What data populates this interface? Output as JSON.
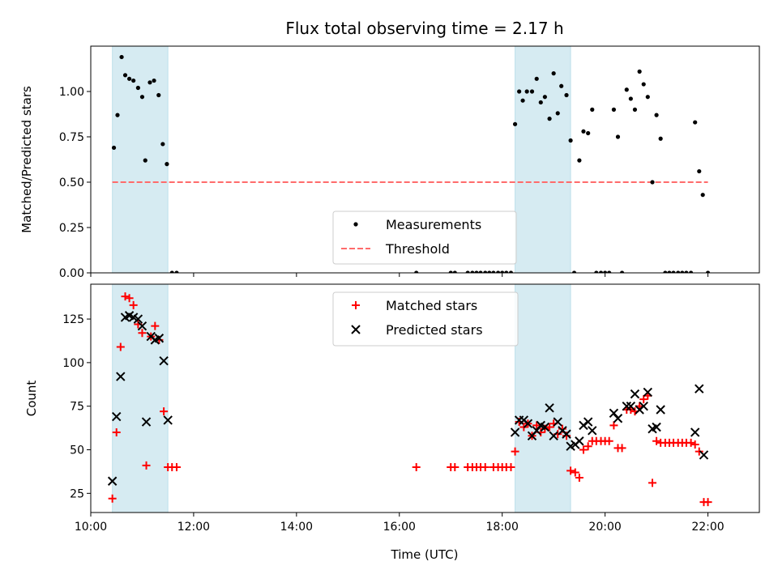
{
  "title": "Flux total observing time = 2.17 h",
  "colors": {
    "shade": "#add8e6",
    "measurement": "#000000",
    "threshold": "#ff6b6b",
    "matched": "#ff0000",
    "predicted": "#000000"
  },
  "chart_data": [
    {
      "type": "scatter",
      "ylabel": "Matched/Predicted stars",
      "xlim": [
        10.0,
        23.0
      ],
      "ylim": [
        0.0,
        1.25
      ],
      "yticks": [
        0.0,
        0.25,
        0.5,
        0.75,
        1.0
      ],
      "ytick_labels": [
        "0.00",
        "0.25",
        "0.50",
        "0.75",
        "1.00"
      ],
      "grid": false,
      "legend": "lower-center",
      "shaded_intervals": [
        [
          10.42,
          11.5
        ],
        [
          18.25,
          19.33
        ]
      ],
      "threshold": {
        "name": "Threshold",
        "y": 0.5,
        "x_range": [
          10.42,
          22.0
        ]
      },
      "series": [
        {
          "name": "Measurements",
          "marker": "dot",
          "points": [
            [
              10.45,
              0.69
            ],
            [
              10.52,
              0.87
            ],
            [
              10.6,
              1.19
            ],
            [
              10.67,
              1.09
            ],
            [
              10.75,
              1.07
            ],
            [
              10.83,
              1.06
            ],
            [
              10.92,
              1.02
            ],
            [
              11.0,
              0.97
            ],
            [
              11.06,
              0.62
            ],
            [
              11.15,
              1.05
            ],
            [
              11.23,
              1.06
            ],
            [
              11.32,
              0.98
            ],
            [
              11.4,
              0.71
            ],
            [
              11.48,
              0.6
            ],
            [
              11.58,
              0.0
            ],
            [
              11.67,
              0.0
            ],
            [
              16.33,
              0.0
            ],
            [
              17.0,
              0.0
            ],
            [
              17.08,
              0.0
            ],
            [
              17.33,
              0.0
            ],
            [
              17.42,
              0.0
            ],
            [
              17.5,
              0.0
            ],
            [
              17.58,
              0.0
            ],
            [
              17.67,
              0.0
            ],
            [
              17.75,
              0.0
            ],
            [
              17.83,
              0.0
            ],
            [
              17.92,
              0.0
            ],
            [
              18.0,
              0.0
            ],
            [
              18.08,
              0.0
            ],
            [
              18.17,
              0.0
            ],
            [
              18.25,
              0.82
            ],
            [
              18.33,
              1.0
            ],
            [
              18.4,
              0.95
            ],
            [
              18.48,
              1.0
            ],
            [
              18.58,
              1.0
            ],
            [
              18.67,
              1.07
            ],
            [
              18.75,
              0.94
            ],
            [
              18.83,
              0.97
            ],
            [
              18.92,
              0.85
            ],
            [
              19.0,
              1.1
            ],
            [
              19.08,
              0.88
            ],
            [
              19.15,
              1.03
            ],
            [
              19.25,
              0.98
            ],
            [
              19.33,
              0.73
            ],
            [
              19.4,
              0.0
            ],
            [
              19.5,
              0.62
            ],
            [
              19.58,
              0.78
            ],
            [
              19.67,
              0.77
            ],
            [
              19.75,
              0.9
            ],
            [
              19.83,
              0.0
            ],
            [
              19.92,
              0.0
            ],
            [
              20.0,
              0.0
            ],
            [
              20.08,
              0.0
            ],
            [
              20.17,
              0.9
            ],
            [
              20.25,
              0.75
            ],
            [
              20.33,
              0.0
            ],
            [
              20.42,
              1.01
            ],
            [
              20.5,
              0.96
            ],
            [
              20.58,
              0.9
            ],
            [
              20.67,
              1.11
            ],
            [
              20.75,
              1.04
            ],
            [
              20.83,
              0.97
            ],
            [
              20.92,
              0.5
            ],
            [
              21.0,
              0.87
            ],
            [
              21.08,
              0.74
            ],
            [
              21.17,
              0.0
            ],
            [
              21.25,
              0.0
            ],
            [
              21.33,
              0.0
            ],
            [
              21.42,
              0.0
            ],
            [
              21.5,
              0.0
            ],
            [
              21.58,
              0.0
            ],
            [
              21.67,
              0.0
            ],
            [
              21.75,
              0.83
            ],
            [
              21.83,
              0.56
            ],
            [
              21.9,
              0.43
            ],
            [
              22.0,
              0.0
            ]
          ]
        }
      ]
    },
    {
      "type": "scatter",
      "xlabel": "Time (UTC)",
      "ylabel": "Count",
      "xlim": [
        10.0,
        23.0
      ],
      "ylim": [
        14.0,
        145.0
      ],
      "xticks": [
        10,
        12,
        14,
        16,
        18,
        20,
        22
      ],
      "xtick_labels": [
        "10:00",
        "12:00",
        "14:00",
        "16:00",
        "18:00",
        "20:00",
        "22:00"
      ],
      "yticks": [
        25,
        50,
        75,
        100,
        125
      ],
      "ytick_labels": [
        "25",
        "50",
        "75",
        "100",
        "125"
      ],
      "grid": false,
      "legend": "upper-center",
      "shaded_intervals": [
        [
          10.42,
          11.5
        ],
        [
          18.25,
          19.33
        ]
      ],
      "series": [
        {
          "name": "Matched stars",
          "marker": "plus",
          "points": [
            [
              10.42,
              22
            ],
            [
              10.5,
              60
            ],
            [
              10.58,
              109
            ],
            [
              10.67,
              138
            ],
            [
              10.75,
              137
            ],
            [
              10.83,
              133
            ],
            [
              10.92,
              122
            ],
            [
              11.0,
              117
            ],
            [
              11.08,
              41
            ],
            [
              11.17,
              115
            ],
            [
              11.25,
              121
            ],
            [
              11.33,
              113
            ],
            [
              11.42,
              72
            ],
            [
              11.5,
              40
            ],
            [
              11.58,
              40
            ],
            [
              11.67,
              40
            ],
            [
              16.33,
              40
            ],
            [
              17.0,
              40
            ],
            [
              17.08,
              40
            ],
            [
              17.33,
              40
            ],
            [
              17.42,
              40
            ],
            [
              17.5,
              40
            ],
            [
              17.58,
              40
            ],
            [
              17.67,
              40
            ],
            [
              17.83,
              40
            ],
            [
              17.92,
              40
            ],
            [
              18.0,
              40
            ],
            [
              18.08,
              40
            ],
            [
              18.17,
              40
            ],
            [
              18.25,
              49
            ],
            [
              18.33,
              66
            ],
            [
              18.42,
              63
            ],
            [
              18.5,
              65
            ],
            [
              18.58,
              58
            ],
            [
              18.67,
              64
            ],
            [
              18.75,
              60
            ],
            [
              18.83,
              62
            ],
            [
              18.92,
              63
            ],
            [
              19.0,
              65
            ],
            [
              19.08,
              59
            ],
            [
              19.17,
              62
            ],
            [
              19.25,
              58
            ],
            [
              19.33,
              38
            ],
            [
              19.42,
              37
            ],
            [
              19.5,
              34
            ],
            [
              19.58,
              50
            ],
            [
              19.67,
              52
            ],
            [
              19.75,
              55
            ],
            [
              19.83,
              55
            ],
            [
              19.92,
              55
            ],
            [
              20.0,
              55
            ],
            [
              20.08,
              55
            ],
            [
              20.17,
              64
            ],
            [
              20.25,
              51
            ],
            [
              20.33,
              51
            ],
            [
              20.42,
              73
            ],
            [
              20.5,
              73
            ],
            [
              20.58,
              72
            ],
            [
              20.67,
              75
            ],
            [
              20.75,
              79
            ],
            [
              20.83,
              81
            ],
            [
              20.92,
              31
            ],
            [
              21.0,
              55
            ],
            [
              21.08,
              54
            ],
            [
              21.17,
              54
            ],
            [
              21.25,
              54
            ],
            [
              21.33,
              54
            ],
            [
              21.42,
              54
            ],
            [
              21.5,
              54
            ],
            [
              21.58,
              54
            ],
            [
              21.67,
              54
            ],
            [
              21.75,
              53
            ],
            [
              21.83,
              49
            ],
            [
              21.92,
              20
            ],
            [
              22.0,
              20
            ]
          ]
        },
        {
          "name": "Predicted stars",
          "marker": "x",
          "points": [
            [
              10.42,
              32
            ],
            [
              10.5,
              69
            ],
            [
              10.58,
              92
            ],
            [
              10.67,
              126
            ],
            [
              10.75,
              127
            ],
            [
              10.83,
              126
            ],
            [
              10.92,
              125
            ],
            [
              11.0,
              121
            ],
            [
              11.08,
              66
            ],
            [
              11.17,
              115
            ],
            [
              11.25,
              113
            ],
            [
              11.33,
              114
            ],
            [
              11.42,
              101
            ],
            [
              11.5,
              67
            ],
            [
              18.25,
              60
            ],
            [
              18.33,
              67
            ],
            [
              18.42,
              67
            ],
            [
              18.5,
              65
            ],
            [
              18.58,
              58
            ],
            [
              18.67,
              61
            ],
            [
              18.75,
              64
            ],
            [
              18.83,
              63
            ],
            [
              18.92,
              74
            ],
            [
              19.0,
              58
            ],
            [
              19.08,
              66
            ],
            [
              19.17,
              61
            ],
            [
              19.25,
              59
            ],
            [
              19.33,
              52
            ],
            [
              19.42,
              53
            ],
            [
              19.5,
              55
            ],
            [
              19.58,
              64
            ],
            [
              19.67,
              66
            ],
            [
              19.75,
              61
            ],
            [
              20.17,
              71
            ],
            [
              20.25,
              68
            ],
            [
              20.42,
              75
            ],
            [
              20.5,
              75
            ],
            [
              20.58,
              82
            ],
            [
              20.67,
              73
            ],
            [
              20.75,
              75
            ],
            [
              20.83,
              83
            ],
            [
              20.92,
              62
            ],
            [
              21.0,
              63
            ],
            [
              21.08,
              73
            ],
            [
              21.75,
              60
            ],
            [
              21.83,
              85
            ],
            [
              21.92,
              47
            ]
          ]
        }
      ]
    }
  ]
}
